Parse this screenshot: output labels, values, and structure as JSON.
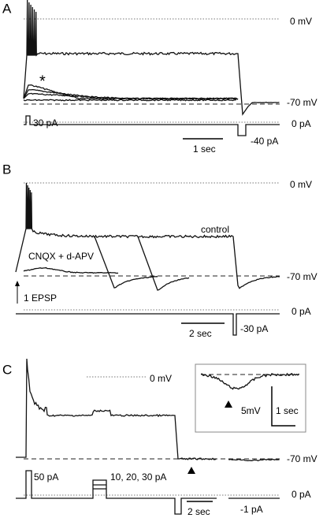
{
  "panels": [
    {
      "label": "A",
      "zero_mv": "0 mV",
      "asterisk": "*",
      "rest_mv": "-70 mV",
      "step_pa": "30 pA",
      "zero_pa": "0 pA",
      "time_scale": "1 sec",
      "neg_pa": "-40 pA"
    },
    {
      "label": "B",
      "zero_mv": "0 mV",
      "control": "control",
      "drug": "CNQX + d-APV",
      "rest_mv": "-70 mV",
      "stimulus": "1 EPSP",
      "zero_pa": "0 pA",
      "time_scale": "2 sec",
      "neg_pa": "-30 pA"
    },
    {
      "label": "C",
      "zero_mv": "0 mV",
      "rest_mv": "-70 mV",
      "step_pa": "50 pA",
      "steps_pa": "10, 20, 30 pA",
      "zero_pa": "0 pA",
      "time_scale": "2 sec",
      "neg_pa": "-1 pA",
      "inset_mv": "5mV",
      "inset_time": "1 sec"
    }
  ]
}
